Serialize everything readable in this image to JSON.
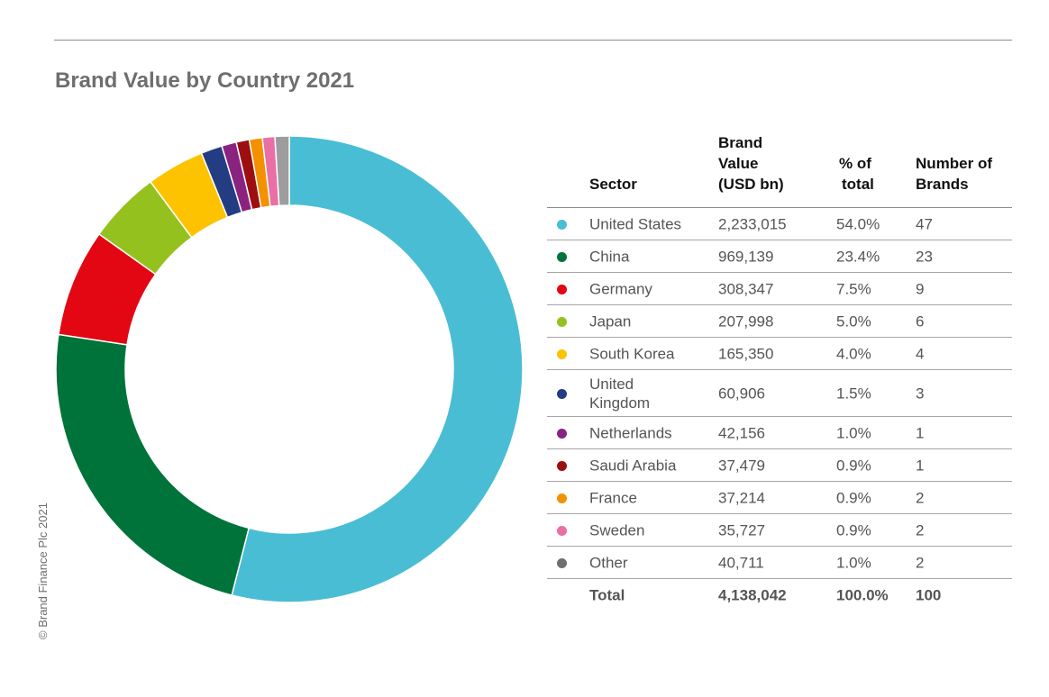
{
  "title": "Brand Value by Country 2021",
  "copyright": "© Brand Finance Plc 2021",
  "chart_data": {
    "type": "pie",
    "title": "Brand Value by Country 2021",
    "columns": {
      "sector": "Sector",
      "value_line1": "Brand",
      "value_line2": "Value",
      "value_line3": "(USD bn)",
      "pct_line1": "% of",
      "pct_line2": "total",
      "num_line1": "Number of",
      "num_line2": "Brands"
    },
    "slices": [
      {
        "label": "United States",
        "value": 2233015,
        "value_text": "2,233,015",
        "pct": "54.0%",
        "brands": "47",
        "color": "#49bdd4"
      },
      {
        "label": "China",
        "value": 969139,
        "value_text": "969,139",
        "pct": "23.4%",
        "brands": "23",
        "color": "#00733a"
      },
      {
        "label": "Germany",
        "value": 308347,
        "value_text": "308,347",
        "pct": "7.5%",
        "brands": "9",
        "color": "#e30613"
      },
      {
        "label": "Japan",
        "value": 207998,
        "value_text": "207,998",
        "pct": "5.0%",
        "brands": "6",
        "color": "#95c11f"
      },
      {
        "label": "South Korea",
        "value": 165350,
        "value_text": "165,350",
        "pct": "4.0%",
        "brands": "4",
        "color": "#fdc300"
      },
      {
        "label": "United Kingdom",
        "label_line1": "United",
        "label_line2": "Kingdom",
        "value": 60906,
        "value_text": "60,906",
        "pct": "1.5%",
        "brands": "3",
        "color": "#233c82"
      },
      {
        "label": "Netherlands",
        "value": 42156,
        "value_text": "42,156",
        "pct": "1.0%",
        "brands": "1",
        "color": "#8a2380"
      },
      {
        "label": "Saudi Arabia",
        "value": 37479,
        "value_text": "37,479",
        "pct": "0.9%",
        "brands": "1",
        "color": "#9c0f10"
      },
      {
        "label": "France",
        "value": 37214,
        "value_text": "37,214",
        "pct": "0.9%",
        "brands": "2",
        "color": "#f39100"
      },
      {
        "label": "Sweden",
        "value": 35727,
        "value_text": "35,727",
        "pct": "0.9%",
        "brands": "2",
        "color": "#e96fa6"
      },
      {
        "label": "Other",
        "value": 40711,
        "value_text": "40,711",
        "pct": "1.0%",
        "brands": "2",
        "color": "#9d9d9d",
        "legend_color": "#6f6f6f"
      }
    ],
    "total": {
      "label": "Total",
      "value_text": "4,138,042",
      "pct": "100.0%",
      "brands": "100"
    }
  }
}
